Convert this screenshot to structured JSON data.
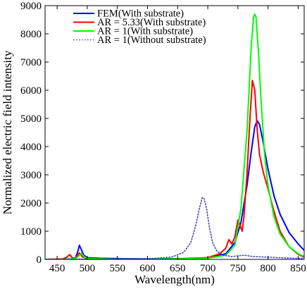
{
  "chart_data": {
    "type": "line",
    "title": "",
    "xlabel": "Wavelength(nm)",
    "ylabel": "Normalized electric field intensity",
    "xlim": [
      430,
      860
    ],
    "ylim": [
      0,
      9000
    ],
    "xticks": [
      450,
      500,
      550,
      600,
      650,
      700,
      750,
      800,
      850
    ],
    "yticks": [
      0,
      1000,
      2000,
      3000,
      4000,
      5000,
      6000,
      7000,
      8000,
      9000
    ],
    "grid": false,
    "legend_position": "top-left",
    "series": [
      {
        "name": "FEM(With substrate)",
        "color": "#0000ff",
        "style": "solid",
        "points": [
          [
            430,
            0
          ],
          [
            470,
            5
          ],
          [
            480,
            40
          ],
          [
            484,
            250
          ],
          [
            487,
            500
          ],
          [
            490,
            360
          ],
          [
            494,
            150
          ],
          [
            500,
            60
          ],
          [
            520,
            40
          ],
          [
            560,
            25
          ],
          [
            600,
            18
          ],
          [
            650,
            25
          ],
          [
            700,
            60
          ],
          [
            730,
            200
          ],
          [
            745,
            600
          ],
          [
            755,
            1300
          ],
          [
            765,
            2600
          ],
          [
            772,
            3800
          ],
          [
            778,
            4700
          ],
          [
            782,
            4920
          ],
          [
            786,
            4780
          ],
          [
            792,
            4150
          ],
          [
            800,
            3200
          ],
          [
            810,
            2250
          ],
          [
            820,
            1600
          ],
          [
            835,
            950
          ],
          [
            850,
            550
          ],
          [
            860,
            320
          ]
        ]
      },
      {
        "name": "AR = 5.33(With substrate)",
        "color": "#ff0000",
        "style": "solid",
        "points": [
          [
            430,
            0
          ],
          [
            460,
            20
          ],
          [
            466,
            80
          ],
          [
            471,
            170
          ],
          [
            475,
            60
          ],
          [
            480,
            40
          ],
          [
            487,
            230
          ],
          [
            492,
            90
          ],
          [
            500,
            30
          ],
          [
            550,
            10
          ],
          [
            650,
            15
          ],
          [
            700,
            60
          ],
          [
            720,
            200
          ],
          [
            730,
            400
          ],
          [
            735,
            700
          ],
          [
            740,
            550
          ],
          [
            745,
            800
          ],
          [
            750,
            1400
          ],
          [
            753,
            1250
          ],
          [
            757,
            1000
          ],
          [
            760,
            1500
          ],
          [
            765,
            3000
          ],
          [
            770,
            5000
          ],
          [
            774,
            6350
          ],
          [
            778,
            6000
          ],
          [
            782,
            4600
          ],
          [
            786,
            3700
          ],
          [
            792,
            3100
          ],
          [
            800,
            2500
          ],
          [
            810,
            1700
          ],
          [
            820,
            1000
          ],
          [
            835,
            450
          ],
          [
            850,
            180
          ],
          [
            860,
            80
          ]
        ]
      },
      {
        "name": "AR = 1(With substrate)",
        "color": "#00ff00",
        "style": "solid",
        "points": [
          [
            430,
            0
          ],
          [
            470,
            5
          ],
          [
            480,
            30
          ],
          [
            485,
            100
          ],
          [
            490,
            210
          ],
          [
            495,
            90
          ],
          [
            500,
            30
          ],
          [
            550,
            10
          ],
          [
            650,
            15
          ],
          [
            700,
            40
          ],
          [
            730,
            150
          ],
          [
            745,
            500
          ],
          [
            755,
            1800
          ],
          [
            765,
            4500
          ],
          [
            772,
            7500
          ],
          [
            776,
            8600
          ],
          [
            778,
            8700
          ],
          [
            780,
            8600
          ],
          [
            784,
            7400
          ],
          [
            788,
            5800
          ],
          [
            794,
            3800
          ],
          [
            800,
            2600
          ],
          [
            810,
            1500
          ],
          [
            820,
            900
          ],
          [
            835,
            450
          ],
          [
            850,
            200
          ],
          [
            860,
            100
          ]
        ]
      },
      {
        "name": "AR = 1(Without substrate)",
        "color": "#4444cc",
        "style": "dotted",
        "points": [
          [
            430,
            0
          ],
          [
            600,
            20
          ],
          [
            640,
            80
          ],
          [
            660,
            250
          ],
          [
            672,
            600
          ],
          [
            680,
            1200
          ],
          [
            686,
            1800
          ],
          [
            691,
            2200
          ],
          [
            694,
            2150
          ],
          [
            698,
            1800
          ],
          [
            703,
            1100
          ],
          [
            708,
            600
          ],
          [
            715,
            300
          ],
          [
            725,
            150
          ],
          [
            740,
            100
          ],
          [
            760,
            150
          ],
          [
            775,
            100
          ],
          [
            800,
            80
          ],
          [
            830,
            50
          ],
          [
            860,
            30
          ]
        ]
      }
    ]
  }
}
